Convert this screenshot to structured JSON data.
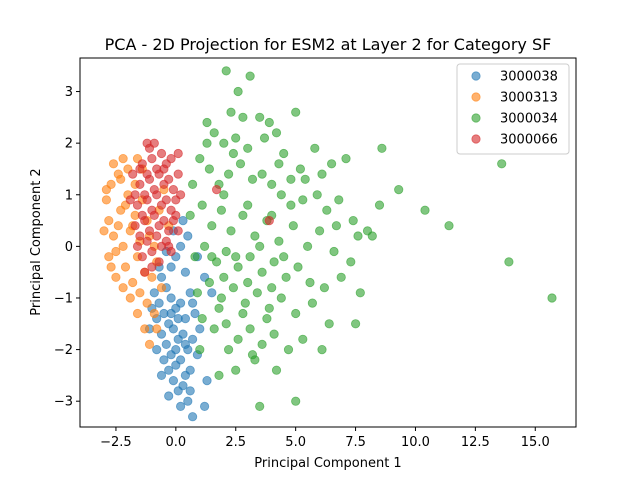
{
  "chart_data": {
    "type": "scatter",
    "title": "PCA - 2D Projection for ESM2 at Layer 2 for Category SF",
    "xlabel": "Principal Component 1",
    "ylabel": "Principal Component 2",
    "xlim": [
      -4.0,
      16.7
    ],
    "ylim": [
      -3.5,
      3.65
    ],
    "xticks": [
      -2.5,
      0.0,
      2.5,
      5.0,
      7.5,
      10.0,
      12.5,
      15.0
    ],
    "xtick_labels": [
      "−2.5",
      "0.0",
      "2.5",
      "5.0",
      "7.5",
      "10.0",
      "12.5",
      "15.0"
    ],
    "yticks": [
      -3,
      -2,
      -1,
      0,
      1,
      2,
      3
    ],
    "ytick_labels": [
      "−3",
      "−2",
      "−1",
      "0",
      "1",
      "2",
      "3"
    ],
    "grid": false,
    "legend_position": "top-right",
    "series": [
      {
        "name": "3000038",
        "color": "#1f77b4",
        "points": [
          [
            -0.6,
            -0.6
          ],
          [
            -0.4,
            -0.8
          ],
          [
            -0.2,
            -1.0
          ],
          [
            0.0,
            -1.2
          ],
          [
            0.2,
            -1.1
          ],
          [
            0.4,
            -1.4
          ],
          [
            -0.5,
            -1.3
          ],
          [
            -0.3,
            -1.5
          ],
          [
            -0.1,
            -1.6
          ],
          [
            0.1,
            -1.8
          ],
          [
            0.3,
            -1.7
          ],
          [
            0.5,
            -2.0
          ],
          [
            -0.7,
            -1.1
          ],
          [
            -0.8,
            -1.4
          ],
          [
            -0.6,
            -1.7
          ],
          [
            -0.4,
            -1.9
          ],
          [
            -0.2,
            -2.1
          ],
          [
            0.0,
            -2.3
          ],
          [
            0.2,
            -2.2
          ],
          [
            0.4,
            -2.5
          ],
          [
            0.6,
            -2.4
          ],
          [
            -0.5,
            -2.2
          ],
          [
            -0.3,
            -2.4
          ],
          [
            -0.1,
            -2.6
          ],
          [
            0.1,
            -2.8
          ],
          [
            0.3,
            -2.7
          ],
          [
            0.5,
            -3.0
          ],
          [
            -0.9,
            -0.9
          ],
          [
            -1.0,
            -1.2
          ],
          [
            -0.2,
            -0.4
          ],
          [
            0.0,
            -0.2
          ],
          [
            0.2,
            0.0
          ],
          [
            0.4,
            -0.5
          ],
          [
            0.6,
            -0.9
          ],
          [
            0.8,
            -1.3
          ],
          [
            1.0,
            -1.6
          ],
          [
            0.7,
            -1.8
          ],
          [
            0.9,
            -2.1
          ],
          [
            0.6,
            -2.8
          ],
          [
            0.7,
            -3.3
          ],
          [
            0.2,
            -3.1
          ],
          [
            -0.3,
            -2.9
          ],
          [
            -0.8,
            -2.0
          ],
          [
            -1.1,
            -1.6
          ],
          [
            1.3,
            -2.6
          ],
          [
            1.2,
            -3.1
          ],
          [
            1.5,
            -0.9
          ],
          [
            1.2,
            -0.6
          ],
          [
            0.9,
            -0.2
          ],
          [
            -0.1,
            0.3
          ],
          [
            0.3,
            0.5
          ],
          [
            0.5,
            0.2
          ],
          [
            -0.4,
            -0.1
          ],
          [
            0.1,
            -1.4
          ],
          [
            -0.6,
            -2.5
          ],
          [
            0.4,
            -1.9
          ],
          [
            -0.2,
            -1.3
          ],
          [
            0.7,
            -1.1
          ],
          [
            -0.7,
            -0.4
          ],
          [
            0.0,
            -2.0
          ]
        ]
      },
      {
        "name": "3000313",
        "color": "#ff7f0e",
        "points": [
          [
            -2.9,
            0.9
          ],
          [
            -2.8,
            0.5
          ],
          [
            -2.7,
            1.2
          ],
          [
            -2.6,
            0.2
          ],
          [
            -2.5,
            -0.1
          ],
          [
            -2.4,
            1.4
          ],
          [
            -2.3,
            0.7
          ],
          [
            -2.2,
            0.0
          ],
          [
            -2.1,
            -0.4
          ],
          [
            -2.0,
            1.0
          ],
          [
            -1.9,
            0.3
          ],
          [
            -1.8,
            -0.7
          ],
          [
            -1.7,
            0.6
          ],
          [
            -1.6,
            -0.2
          ],
          [
            -1.5,
            -0.9
          ],
          [
            -1.4,
            0.9
          ],
          [
            -1.3,
            -0.5
          ],
          [
            -1.2,
            -1.1
          ],
          [
            -1.1,
            0.2
          ],
          [
            -1.0,
            -0.6
          ],
          [
            -0.9,
            -1.3
          ],
          [
            -0.8,
            -0.3
          ],
          [
            -2.6,
            1.6
          ],
          [
            -2.3,
            1.3
          ],
          [
            -2.0,
            1.5
          ],
          [
            -1.7,
            1.2
          ],
          [
            -1.4,
            1.5
          ],
          [
            -2.8,
            -0.2
          ],
          [
            -2.5,
            -0.6
          ],
          [
            -2.2,
            -0.8
          ],
          [
            -1.9,
            -1.0
          ],
          [
            -1.6,
            -1.3
          ],
          [
            -1.3,
            -1.6
          ],
          [
            -2.4,
            0.4
          ],
          [
            -2.1,
            0.8
          ],
          [
            -1.8,
            0.4
          ],
          [
            -1.5,
            0.1
          ],
          [
            -1.2,
            0.5
          ],
          [
            -0.9,
            0.0
          ],
          [
            -0.6,
            -0.8
          ],
          [
            -2.7,
            -0.4
          ],
          [
            -3.0,
            0.3
          ],
          [
            -2.9,
            1.1
          ],
          [
            -1.1,
            -1.9
          ],
          [
            -0.8,
            -1.6
          ],
          [
            -0.5,
            1.1
          ],
          [
            -0.3,
            0.4
          ],
          [
            -2.2,
            1.7
          ],
          [
            -1.6,
            1.7
          ],
          [
            -0.7,
            0.7
          ]
        ]
      },
      {
        "name": "3000034",
        "color": "#2ca02c",
        "points": [
          [
            2.1,
            3.4
          ],
          [
            2.6,
            3.0
          ],
          [
            3.1,
            3.3
          ],
          [
            3.5,
            2.5
          ],
          [
            3.9,
            2.4
          ],
          [
            4.2,
            2.2
          ],
          [
            5.0,
            2.6
          ],
          [
            1.3,
            2.4
          ],
          [
            1.6,
            2.2
          ],
          [
            2.0,
            2.0
          ],
          [
            2.5,
            2.1
          ],
          [
            3.0,
            1.9
          ],
          [
            4.5,
            1.8
          ],
          [
            5.2,
            1.5
          ],
          [
            5.8,
            1.9
          ],
          [
            6.5,
            1.6
          ],
          [
            7.1,
            1.7
          ],
          [
            8.6,
            1.9
          ],
          [
            9.3,
            1.1
          ],
          [
            10.4,
            0.7
          ],
          [
            11.4,
            0.4
          ],
          [
            13.6,
            1.6
          ],
          [
            13.9,
            -0.3
          ],
          [
            15.7,
            -1.0
          ],
          [
            1.0,
            1.7
          ],
          [
            1.4,
            1.5
          ],
          [
            1.8,
            1.2
          ],
          [
            2.2,
            1.4
          ],
          [
            2.7,
            1.6
          ],
          [
            3.2,
            1.3
          ],
          [
            3.6,
            1.4
          ],
          [
            4.0,
            1.2
          ],
          [
            4.4,
            1.0
          ],
          [
            4.8,
            1.3
          ],
          [
            5.3,
            0.9
          ],
          [
            5.9,
            1.0
          ],
          [
            6.3,
            0.7
          ],
          [
            6.8,
            0.9
          ],
          [
            7.4,
            0.5
          ],
          [
            8.0,
            0.3
          ],
          [
            8.5,
            0.8
          ],
          [
            0.6,
            0.6
          ],
          [
            1.1,
            0.8
          ],
          [
            1.5,
            0.4
          ],
          [
            1.9,
            0.7
          ],
          [
            2.3,
            0.3
          ],
          [
            2.8,
            0.6
          ],
          [
            3.3,
            0.2
          ],
          [
            3.8,
            0.5
          ],
          [
            4.3,
            0.1
          ],
          [
            4.9,
            0.4
          ],
          [
            5.5,
            0.0
          ],
          [
            6.0,
            0.3
          ],
          [
            6.6,
            -0.1
          ],
          [
            7.3,
            -0.3
          ],
          [
            8.2,
            0.2
          ],
          [
            0.8,
            -0.2
          ],
          [
            1.2,
            0.0
          ],
          [
            1.7,
            -0.3
          ],
          [
            2.1,
            -0.1
          ],
          [
            2.6,
            -0.4
          ],
          [
            3.1,
            -0.2
          ],
          [
            3.6,
            -0.5
          ],
          [
            4.1,
            -0.3
          ],
          [
            4.6,
            -0.6
          ],
          [
            5.1,
            -0.4
          ],
          [
            5.6,
            -0.7
          ],
          [
            6.2,
            -0.8
          ],
          [
            6.9,
            -0.6
          ],
          [
            7.7,
            -0.9
          ],
          [
            0.9,
            -0.9
          ],
          [
            1.4,
            -0.7
          ],
          [
            1.9,
            -1.0
          ],
          [
            2.4,
            -0.8
          ],
          [
            2.9,
            -1.1
          ],
          [
            3.4,
            -0.9
          ],
          [
            3.9,
            -1.2
          ],
          [
            4.4,
            -1.0
          ],
          [
            5.0,
            -1.3
          ],
          [
            5.7,
            -1.1
          ],
          [
            6.4,
            -1.5
          ],
          [
            7.5,
            -1.5
          ],
          [
            1.1,
            -1.4
          ],
          [
            1.6,
            -1.6
          ],
          [
            2.1,
            -1.5
          ],
          [
            2.6,
            -1.8
          ],
          [
            3.1,
            -1.6
          ],
          [
            3.6,
            -1.9
          ],
          [
            4.1,
            -1.7
          ],
          [
            4.7,
            -2.0
          ],
          [
            5.3,
            -1.8
          ],
          [
            6.1,
            -2.0
          ],
          [
            1.0,
            -2.0
          ],
          [
            1.8,
            -2.5
          ],
          [
            2.5,
            -2.4
          ],
          [
            3.3,
            -2.2
          ],
          [
            4.2,
            -2.4
          ],
          [
            5.0,
            -3.0
          ],
          [
            3.5,
            -3.1
          ],
          [
            0.7,
            1.2
          ],
          [
            1.3,
            2.0
          ],
          [
            2.3,
            2.6
          ],
          [
            2.8,
            2.5
          ],
          [
            3.7,
            2.1
          ],
          [
            4.3,
            1.6
          ],
          [
            4.8,
            0.8
          ],
          [
            5.4,
            1.3
          ],
          [
            6.1,
            1.4
          ],
          [
            6.7,
            0.4
          ],
          [
            7.6,
            0.2
          ],
          [
            2.0,
            1.0
          ],
          [
            3.0,
            0.8
          ],
          [
            4.0,
            0.6
          ],
          [
            1.5,
            -0.2
          ],
          [
            2.5,
            -0.2
          ],
          [
            3.5,
            0.0
          ],
          [
            4.5,
            -0.2
          ],
          [
            2.0,
            -0.6
          ],
          [
            3.0,
            -0.7
          ],
          [
            4.0,
            -0.8
          ],
          [
            1.8,
            -1.2
          ],
          [
            2.8,
            -1.3
          ],
          [
            3.8,
            -1.4
          ],
          [
            2.2,
            -2.0
          ],
          [
            3.2,
            -2.1
          ],
          [
            2.4,
            1.8
          ]
        ]
      },
      {
        "name": "3000066",
        "color": "#d62728",
        "points": [
          [
            -1.4,
            1.6
          ],
          [
            -1.2,
            1.4
          ],
          [
            -1.0,
            1.7
          ],
          [
            -0.8,
            1.5
          ],
          [
            -0.6,
            1.8
          ],
          [
            -0.4,
            1.6
          ],
          [
            -0.2,
            1.7
          ],
          [
            0.1,
            1.8
          ],
          [
            -1.5,
            1.2
          ],
          [
            -1.3,
            1.0
          ],
          [
            -1.1,
            1.3
          ],
          [
            -0.9,
            1.1
          ],
          [
            -0.7,
            1.4
          ],
          [
            -0.5,
            1.2
          ],
          [
            -0.3,
            1.3
          ],
          [
            -0.1,
            1.1
          ],
          [
            0.1,
            1.4
          ],
          [
            -1.6,
            0.8
          ],
          [
            -1.4,
            0.6
          ],
          [
            -1.2,
            0.9
          ],
          [
            -1.0,
            0.7
          ],
          [
            -0.8,
            1.0
          ],
          [
            -0.6,
            0.8
          ],
          [
            -0.4,
            0.9
          ],
          [
            -0.2,
            0.7
          ],
          [
            0.0,
            0.9
          ],
          [
            -1.7,
            0.4
          ],
          [
            -1.5,
            0.2
          ],
          [
            -1.3,
            0.5
          ],
          [
            -1.1,
            0.3
          ],
          [
            -0.9,
            0.6
          ],
          [
            -0.7,
            0.4
          ],
          [
            -0.5,
            0.5
          ],
          [
            -0.3,
            0.3
          ],
          [
            -0.1,
            0.5
          ],
          [
            0.1,
            0.3
          ],
          [
            -1.6,
            0.0
          ],
          [
            -1.4,
            -0.2
          ],
          [
            -1.2,
            0.1
          ],
          [
            -1.0,
            -0.1
          ],
          [
            -0.8,
            0.2
          ],
          [
            -0.6,
            0.0
          ],
          [
            -0.4,
            0.1
          ],
          [
            -0.2,
            -0.1
          ],
          [
            -1.3,
            -0.5
          ],
          [
            -1.0,
            -0.4
          ],
          [
            -0.7,
            -0.3
          ],
          [
            -1.8,
            1.4
          ],
          [
            -1.7,
            1.0
          ],
          [
            0.2,
            1.0
          ],
          [
            -1.2,
            2.0
          ],
          [
            -0.9,
            2.0
          ],
          [
            -1.5,
            1.5
          ],
          [
            -0.5,
            1.5
          ],
          [
            1.7,
            1.1
          ],
          [
            3.9,
            0.5
          ],
          [
            -1.9,
            0.9
          ],
          [
            -1.1,
            1.9
          ],
          [
            -0.3,
            0.0
          ],
          [
            0.0,
            0.6
          ]
        ]
      }
    ]
  }
}
